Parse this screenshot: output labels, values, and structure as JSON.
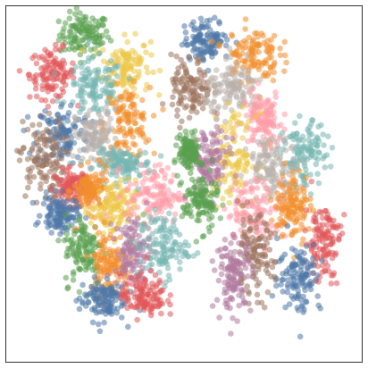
{
  "chart_data": {
    "type": "scatter",
    "title": "",
    "xlabel": "",
    "ylabel": "",
    "xlim": [
      0,
      100
    ],
    "ylim": [
      0,
      100
    ],
    "grid": false,
    "legend": "none",
    "axis_ticks": false,
    "marker_opacity": 0.55,
    "points_per_cluster": 120,
    "palette": {
      "blue": "#4e79a7",
      "orange": "#f28e2b",
      "red": "#e15759",
      "teal": "#76b7b2",
      "green": "#59a14f",
      "yellow": "#edc948",
      "purple": "#b07aa1",
      "pink": "#ff9da7",
      "brown": "#9c755f",
      "gray": "#bab0ac"
    },
    "clusters": [
      {
        "color": "green",
        "cx": 22.0,
        "cy": 92.0,
        "sx": 3.5,
        "sy": 3.0
      },
      {
        "color": "yellow",
        "cx": 33.5,
        "cy": 83.0,
        "sx": 3.5,
        "sy": 4.0
      },
      {
        "color": "red",
        "cx": 13.0,
        "cy": 81.0,
        "sx": 3.2,
        "sy": 3.5
      },
      {
        "color": "teal",
        "cx": 25.0,
        "cy": 77.0,
        "sx": 4.0,
        "sy": 4.0
      },
      {
        "color": "orange",
        "cx": 34.0,
        "cy": 67.0,
        "sx": 3.2,
        "sy": 5.0
      },
      {
        "color": "blue",
        "cx": 16.0,
        "cy": 64.0,
        "sx": 3.8,
        "sy": 4.5
      },
      {
        "color": "brown",
        "cx": 10.0,
        "cy": 57.0,
        "sx": 3.2,
        "sy": 5.5
      },
      {
        "color": "gray",
        "cx": 25.5,
        "cy": 63.0,
        "sx": 3.0,
        "sy": 4.0
      },
      {
        "color": "teal",
        "cx": 33.0,
        "cy": 55.5,
        "sx": 4.0,
        "sy": 2.0
      },
      {
        "color": "red",
        "cx": 18.5,
        "cy": 49.0,
        "sx": 2.5,
        "sy": 2.5
      },
      {
        "color": "orange",
        "cx": 24.0,
        "cy": 48.0,
        "sx": 2.5,
        "sy": 3.0
      },
      {
        "color": "blue",
        "cx": 15.0,
        "cy": 41.5,
        "sx": 2.5,
        "sy": 2.5
      },
      {
        "color": "yellow",
        "cx": 30.0,
        "cy": 43.0,
        "sx": 3.2,
        "sy": 4.0
      },
      {
        "color": "pink",
        "cx": 41.5,
        "cy": 47.0,
        "sx": 4.0,
        "sy": 4.0
      },
      {
        "color": "green",
        "cx": 22.0,
        "cy": 31.5,
        "sx": 2.8,
        "sy": 5.0
      },
      {
        "color": "orange",
        "cx": 29.0,
        "cy": 28.0,
        "sx": 2.8,
        "sy": 4.5
      },
      {
        "color": "purple",
        "cx": 35.5,
        "cy": 31.0,
        "sx": 2.5,
        "sy": 5.0
      },
      {
        "color": "teal",
        "cx": 44.0,
        "cy": 32.5,
        "sx": 3.5,
        "sy": 4.5
      },
      {
        "color": "blue",
        "cx": 27.0,
        "cy": 17.5,
        "sx": 3.2,
        "sy": 3.0
      },
      {
        "color": "red",
        "cx": 38.5,
        "cy": 18.5,
        "sx": 3.2,
        "sy": 3.0
      },
      {
        "color": "blue",
        "cx": 56.5,
        "cy": 90.5,
        "sx": 3.2,
        "sy": 2.8
      },
      {
        "color": "orange",
        "cx": 69.0,
        "cy": 86.5,
        "sx": 3.8,
        "sy": 4.0
      },
      {
        "color": "brown",
        "cx": 52.0,
        "cy": 76.5,
        "sx": 2.8,
        "sy": 4.5
      },
      {
        "color": "gray",
        "cx": 64.5,
        "cy": 76.5,
        "sx": 4.0,
        "sy": 3.5
      },
      {
        "color": "pink",
        "cx": 72.0,
        "cy": 68.0,
        "sx": 2.8,
        "sy": 4.0
      },
      {
        "color": "yellow",
        "cx": 64.0,
        "cy": 57.5,
        "sx": 3.2,
        "sy": 6.0
      },
      {
        "color": "purple",
        "cx": 57.0,
        "cy": 56.0,
        "sx": 2.8,
        "sy": 5.0
      },
      {
        "color": "green",
        "cx": 51.5,
        "cy": 59.0,
        "sx": 1.5,
        "sy": 2.5
      },
      {
        "color": "green",
        "cx": 54.5,
        "cy": 45.0,
        "sx": 2.5,
        "sy": 4.0
      },
      {
        "color": "teal",
        "cx": 84.0,
        "cy": 58.0,
        "sx": 3.0,
        "sy": 4.5
      },
      {
        "color": "gray",
        "cx": 75.0,
        "cy": 55.0,
        "sx": 3.5,
        "sy": 4.0
      },
      {
        "color": "pink",
        "cx": 70.0,
        "cy": 42.5,
        "sx": 4.0,
        "sy": 4.5
      },
      {
        "color": "orange",
        "cx": 80.5,
        "cy": 44.0,
        "sx": 2.5,
        "sy": 5.0
      },
      {
        "color": "red",
        "cx": 89.0,
        "cy": 34.0,
        "sx": 2.5,
        "sy": 5.5
      },
      {
        "color": "brown",
        "cx": 69.5,
        "cy": 29.5,
        "sx": 3.0,
        "sy": 5.5
      },
      {
        "color": "purple",
        "cx": 64.0,
        "cy": 24.5,
        "sx": 2.5,
        "sy": 5.0
      },
      {
        "color": "blue",
        "cx": 82.5,
        "cy": 24.0,
        "sx": 3.0,
        "sy": 5.0
      }
    ]
  }
}
